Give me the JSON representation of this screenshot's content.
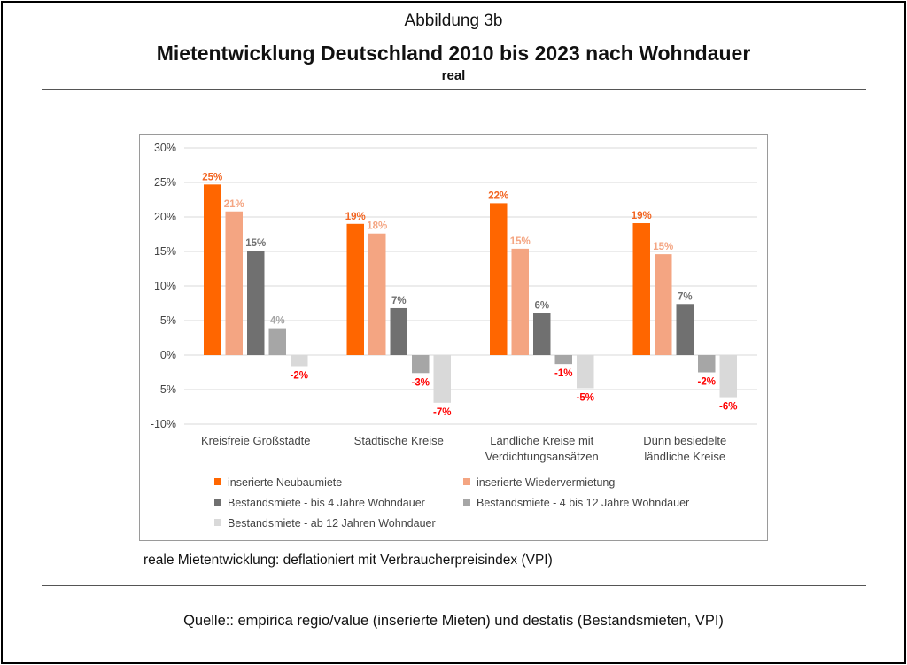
{
  "header": {
    "figure_label": "Abbildung 3b",
    "title": "Mietentwicklung Deutschland 2010 bis 2023 nach Wohndauer",
    "subtitle": "real"
  },
  "note": "reale Mietentwicklung: deflationiert mit Verbraucherpreisindex (VPI)",
  "source": "Quelle:: empirica regio/value (inserierte Mieten) und destatis (Bestandsmieten, VPI)",
  "chart_data": {
    "type": "bar",
    "categories": [
      [
        "Kreisfreie Großstädte"
      ],
      [
        "Städtische Kreise"
      ],
      [
        "Ländliche Kreise mit",
        "Verdichtungsansätzen"
      ],
      [
        "Dünn besiedelte",
        "ländliche Kreise"
      ]
    ],
    "series": [
      {
        "name": "inserierte Neubaumiete",
        "color": "#FF6600",
        "label_color": "#F26522",
        "values": [
          24.7,
          19.0,
          22.0,
          19.1
        ],
        "labels": [
          "25%",
          "19%",
          "22%",
          "19%"
        ]
      },
      {
        "name": "inserierte Wiedervermietung",
        "color": "#F4A582",
        "label_color": "#F4A582",
        "values": [
          20.8,
          17.6,
          15.4,
          14.6
        ],
        "labels": [
          "21%",
          "18%",
          "15%",
          "15%"
        ]
      },
      {
        "name": "Bestandsmiete - bis 4 Jahre Wohndauer",
        "color": "#707070",
        "label_color": "#707070",
        "values": [
          15.1,
          6.8,
          6.1,
          7.4
        ],
        "labels": [
          "15%",
          "7%",
          "6%",
          "7%"
        ]
      },
      {
        "name": "Bestandsmiete - 4 bis 12 Jahre Wohndauer",
        "color": "#A6A6A6",
        "label_color": "#FF0000",
        "values": [
          3.9,
          -2.6,
          -1.3,
          -2.5
        ],
        "labels": [
          "4%",
          "-3%",
          "-1%",
          "-2%"
        ]
      },
      {
        "name": "Bestandsmiete - ab 12 Jahren Wohndauer",
        "color": "#D9D9D9",
        "label_color": "#FF0000",
        "values": [
          -1.6,
          -6.9,
          -4.8,
          -6.1
        ],
        "labels": [
          "-2%",
          "-7%",
          "-5%",
          "-6%"
        ]
      }
    ],
    "positive_label_colors": [
      "#F26522",
      "#F4A582",
      "#707070",
      "#A6A6A6",
      "#A6A6A6"
    ],
    "negative_label_color": "#FF0000",
    "ylim": [
      -10,
      30
    ],
    "yticks": [
      30,
      25,
      20,
      15,
      10,
      5,
      0,
      -5,
      -10
    ],
    "ytick_labels": [
      "30%",
      "25%",
      "20%",
      "15%",
      "10%",
      "5%",
      "0%",
      "-5%",
      "-10%"
    ],
    "grid": true,
    "legend_position": "bottom"
  }
}
